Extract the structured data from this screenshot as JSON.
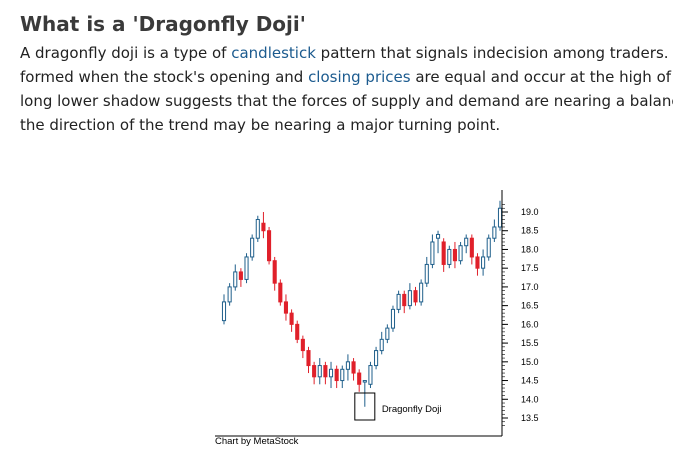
{
  "article": {
    "title": "What is a 'Dragonfly Doji'",
    "line1_pre": "A dragonfly doji is a type of ",
    "link_candlestick": "candlestick",
    "line1_post": " pattern that signals indecision among traders. The pa",
    "line2_pre": "formed when the stock's opening and ",
    "link_closing_prices": "closing prices",
    "line2_post": " are equal and occur at the high of the da",
    "line3": "long lower shadow suggests that the forces of supply and demand are nearing a balance and",
    "line4": "the direction of the trend may be nearing a major turning point.",
    "link_color": "#1c5b8f"
  },
  "chart_data": {
    "type": "candlestick",
    "annotation": "Dragonfly Doji",
    "caption": "Chart by MetaStock",
    "y_ticks": [
      "19.0",
      "18.5",
      "18.0",
      "17.5",
      "17.0",
      "16.5",
      "16.0",
      "15.5",
      "15.0",
      "14.5",
      "14.0",
      "13.5"
    ],
    "ylim": [
      13.1,
      19.3
    ],
    "up_color": "#1f5f8b",
    "down_color": "#e0202a",
    "candles": [
      [
        16.1,
        16.6,
        16.0,
        16.8
      ],
      [
        16.6,
        17.0,
        16.5,
        17.1
      ],
      [
        17.0,
        17.4,
        16.9,
        17.6
      ],
      [
        17.4,
        17.2,
        17.0,
        17.5
      ],
      [
        17.2,
        17.8,
        17.1,
        17.9
      ],
      [
        17.8,
        18.3,
        17.7,
        18.4
      ],
      [
        18.3,
        18.8,
        18.2,
        18.9
      ],
      [
        18.7,
        18.5,
        18.3,
        19.0
      ],
      [
        18.5,
        17.7,
        17.6,
        18.6
      ],
      [
        17.7,
        17.1,
        16.9,
        17.8
      ],
      [
        17.1,
        16.6,
        16.5,
        17.2
      ],
      [
        16.6,
        16.3,
        16.1,
        16.8
      ],
      [
        16.3,
        16.0,
        15.8,
        16.4
      ],
      [
        16.0,
        15.6,
        15.5,
        16.1
      ],
      [
        15.6,
        15.3,
        15.1,
        15.7
      ],
      [
        15.3,
        14.9,
        14.7,
        15.4
      ],
      [
        14.9,
        14.6,
        14.4,
        15.0
      ],
      [
        14.6,
        14.9,
        14.4,
        15.1
      ],
      [
        14.9,
        14.6,
        14.4,
        15.0
      ],
      [
        14.6,
        14.8,
        14.3,
        15.0
      ],
      [
        14.8,
        14.5,
        14.3,
        14.9
      ],
      [
        14.5,
        14.8,
        14.3,
        14.9
      ],
      [
        14.8,
        15.0,
        14.5,
        15.2
      ],
      [
        15.0,
        14.7,
        14.5,
        15.1
      ],
      [
        14.7,
        14.4,
        14.2,
        14.8
      ],
      [
        14.5,
        14.5,
        13.8,
        14.5
      ],
      [
        14.4,
        14.9,
        14.3,
        15.0
      ],
      [
        14.9,
        15.3,
        14.8,
        15.4
      ],
      [
        15.3,
        15.6,
        15.2,
        15.8
      ],
      [
        15.6,
        15.9,
        15.5,
        16.0
      ],
      [
        15.9,
        16.4,
        15.8,
        16.5
      ],
      [
        16.4,
        16.8,
        16.3,
        16.9
      ],
      [
        16.8,
        16.5,
        16.3,
        16.9
      ],
      [
        16.5,
        16.9,
        16.4,
        17.1
      ],
      [
        16.9,
        16.6,
        16.5,
        17.0
      ],
      [
        16.6,
        17.1,
        16.5,
        17.2
      ],
      [
        17.1,
        17.6,
        17.0,
        17.8
      ],
      [
        17.6,
        18.2,
        17.5,
        18.4
      ],
      [
        18.3,
        18.4,
        17.9,
        18.5
      ],
      [
        18.2,
        17.6,
        17.4,
        18.3
      ],
      [
        17.6,
        18.0,
        17.5,
        18.1
      ],
      [
        18.0,
        17.7,
        17.5,
        18.2
      ],
      [
        17.7,
        18.1,
        17.6,
        18.2
      ],
      [
        18.1,
        18.3,
        17.9,
        18.4
      ],
      [
        18.3,
        17.8,
        17.6,
        18.4
      ],
      [
        17.8,
        17.5,
        17.3,
        17.9
      ],
      [
        17.5,
        17.8,
        17.3,
        18.0
      ],
      [
        17.8,
        18.3,
        17.7,
        18.4
      ],
      [
        18.3,
        18.6,
        18.2,
        18.8
      ],
      [
        18.6,
        19.1,
        18.5,
        19.3
      ]
    ]
  }
}
